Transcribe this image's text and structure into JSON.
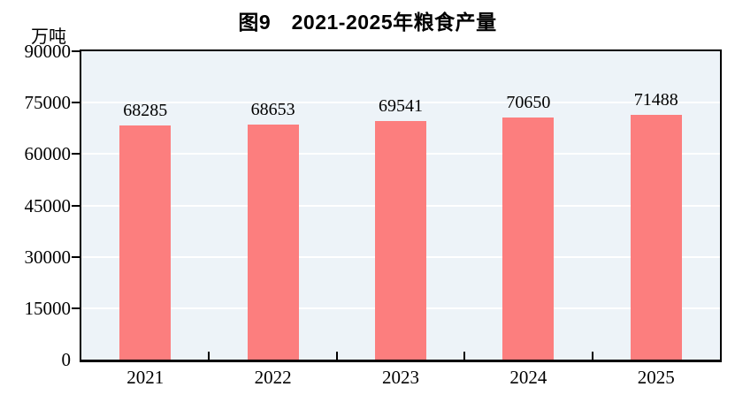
{
  "header": {
    "title": "图9　2021-2025年粮食产量",
    "unit_label": "万吨"
  },
  "chart_data": {
    "type": "bar",
    "title": "图9　2021-2025年粮食产量",
    "categories": [
      "2021",
      "2022",
      "2023",
      "2024",
      "2025"
    ],
    "values": [
      68285,
      68653,
      69541,
      70650,
      71488
    ],
    "xlabel": "",
    "ylabel": "万吨",
    "ylim": [
      0,
      90000
    ],
    "yticks": [
      0,
      15000,
      30000,
      45000,
      60000,
      75000,
      90000
    ],
    "grid": true,
    "legend": false,
    "layout_hints": {
      "gridlines": "horizontal white lines on light blue panel",
      "x_ticks": "inside plot at category boundaries",
      "y_ticks": "outside plot at each tick value"
    },
    "colors": {
      "bar": "#FC7E7E",
      "plot_background": "#EDF3F8",
      "gridline": "#FFFFFF",
      "axis": "#000000",
      "text": "#000000"
    }
  }
}
